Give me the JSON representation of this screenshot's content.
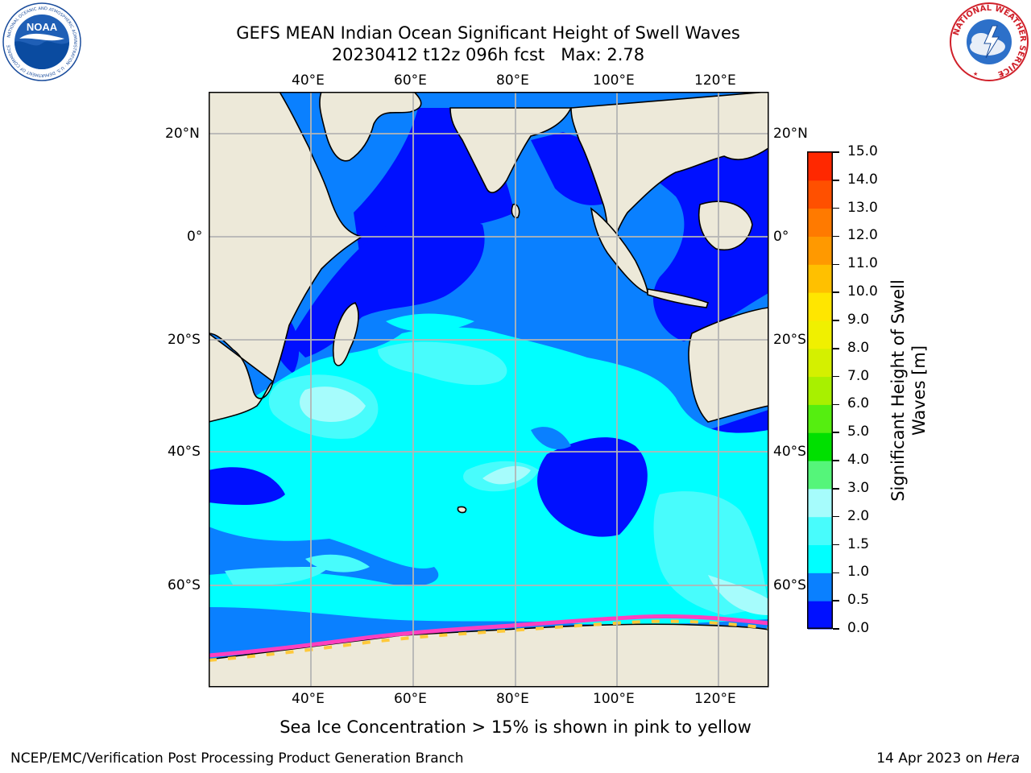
{
  "title": {
    "line1": "GEFS MEAN Indian Ocean Significant Height of Swell Waves",
    "line2": "20230412 t12z 096h fcst   Max: 2.78"
  },
  "map": {
    "lon_range": [
      21,
      129
    ],
    "lat_range": [
      -70,
      28
    ],
    "lon_ticks": [
      "40°E",
      "60°E",
      "80°E",
      "100°E",
      "120°E"
    ],
    "lat_ticks": [
      "20°N",
      "0°",
      "20°S",
      "40°S",
      "60°S"
    ],
    "land_color": "#ede9d9",
    "ice_colors": [
      "#ff3fbf",
      "#ffc93a"
    ]
  },
  "colorbar": {
    "label": "Significant Height of Swell Waves [m]",
    "label_line1": "Significant Height of Swell",
    "label_line2": "Waves [m]",
    "ticks": [
      "0.0",
      "0.5",
      "1.0",
      "1.5",
      "2.0",
      "3.0",
      "4.0",
      "5.0",
      "6.0",
      "7.0",
      "8.0",
      "9.0",
      "10.0",
      "11.0",
      "12.0",
      "13.0",
      "14.0",
      "15.0"
    ],
    "colors": [
      "#0010ff",
      "#0a80ff",
      "#00ffff",
      "#48fcfc",
      "#a6fcfc",
      "#55f57a",
      "#00e000",
      "#55ee10",
      "#a8f000",
      "#d4f000",
      "#f0f000",
      "#ffe600",
      "#ffc000",
      "#ff9900",
      "#ff7a00",
      "#ff5000",
      "#ff2800",
      "#ff0000"
    ]
  },
  "caption": "Sea Ice Concentration > 15% is shown in pink to yellow",
  "footer": {
    "left": "NCEP/EMC/Verification Post Processing Product Generation Branch",
    "right_date": "14 Apr 2023 on",
    "right_machine": "Hera"
  },
  "logos": {
    "noaa": "NOAA",
    "noaa_ring": "NATIONAL OCEANIC AND ATMOSPHERIC ADMINISTRATION · U.S. DEPARTMENT OF COMMERCE",
    "nws_ring": "NATIONAL WEATHER SERVICE"
  }
}
